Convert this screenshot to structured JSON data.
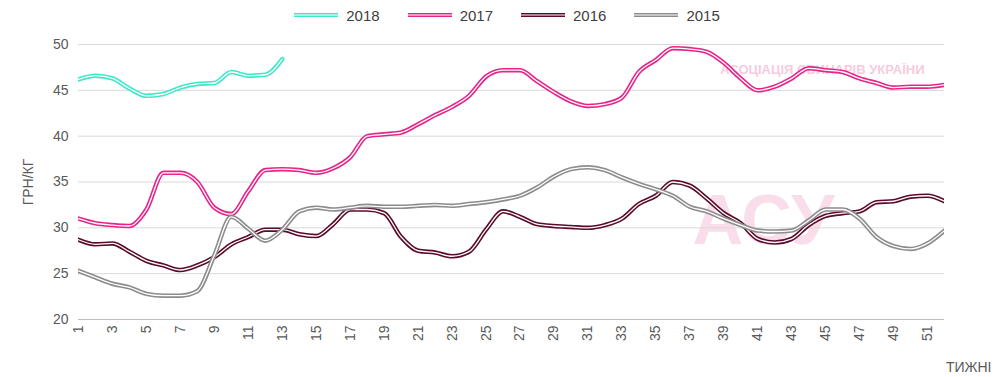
{
  "chart_data": {
    "type": "line",
    "x_label": "ТИЖНІ",
    "y_label": "ГРН/КГ",
    "annotations": [
      "АСОЦІАЦІЯ СВИНАРІВ УКРАЇНИ",
      "АСУ"
    ],
    "x": [
      1,
      2,
      3,
      4,
      5,
      6,
      7,
      8,
      9,
      10,
      11,
      12,
      13,
      14,
      15,
      16,
      17,
      18,
      19,
      20,
      21,
      22,
      23,
      24,
      25,
      26,
      27,
      28,
      29,
      30,
      31,
      32,
      33,
      34,
      35,
      36,
      37,
      38,
      39,
      40,
      41,
      42,
      43,
      44,
      45,
      46,
      47,
      48,
      49,
      50,
      51,
      52
    ],
    "xlim": [
      1,
      52
    ],
    "xticks": [
      1,
      3,
      5,
      7,
      9,
      11,
      13,
      15,
      17,
      19,
      21,
      23,
      25,
      27,
      29,
      31,
      33,
      35,
      37,
      39,
      41,
      43,
      45,
      47,
      49,
      51
    ],
    "ylim": [
      20,
      50
    ],
    "yticks": [
      20,
      25,
      30,
      35,
      40,
      45,
      50
    ],
    "grid": true,
    "legend": "top",
    "line_style": "double",
    "series": [
      {
        "name": "2018",
        "color": "#3ee8c8",
        "values": [
          46.2,
          46.6,
          46.3,
          45.2,
          44.4,
          44.6,
          45.3,
          45.7,
          45.8,
          47.0,
          46.6,
          46.7,
          48.4,
          null,
          null,
          null,
          null,
          null,
          null,
          null,
          null,
          null,
          null,
          null,
          null,
          null,
          null,
          null,
          null,
          null,
          null,
          null,
          null,
          null,
          null,
          null,
          null,
          null,
          null,
          null,
          null,
          null,
          null,
          null,
          null,
          null,
          null,
          null,
          null,
          null,
          null,
          null
        ]
      },
      {
        "name": "2017",
        "color": "#e6248a",
        "values": [
          31.0,
          30.5,
          30.3,
          30.2,
          32.0,
          36.0,
          36.0,
          35.0,
          32.2,
          31.5,
          34.0,
          36.3,
          36.4,
          36.3,
          36.0,
          36.5,
          37.7,
          40.0,
          40.2,
          40.4,
          41.3,
          42.3,
          43.2,
          44.4,
          46.5,
          47.2,
          47.2,
          46.0,
          44.8,
          43.8,
          43.3,
          43.5,
          44.2,
          47.0,
          48.3,
          49.6,
          49.5,
          49.2,
          48.0,
          46.3,
          45.0,
          45.4,
          46.3,
          47.4,
          47.2,
          47.0,
          46.3,
          45.8,
          45.3,
          45.4,
          45.4,
          45.6
        ]
      },
      {
        "name": "2016",
        "color": "#5a0a2a",
        "values": [
          28.7,
          28.2,
          28.3,
          27.4,
          26.4,
          25.9,
          25.4,
          25.9,
          26.8,
          28.2,
          29.0,
          29.8,
          29.8,
          29.3,
          29.1,
          30.4,
          32.0,
          32.0,
          31.6,
          29.0,
          27.5,
          27.3,
          26.9,
          27.4,
          29.8,
          31.8,
          31.2,
          30.4,
          30.2,
          30.1,
          30.0,
          30.3,
          31.0,
          32.6,
          33.5,
          35.0,
          34.6,
          33.2,
          31.6,
          30.5,
          28.8,
          28.4,
          28.8,
          30.3,
          31.3,
          31.6,
          31.8,
          32.8,
          32.9,
          33.4,
          33.5,
          32.9
        ]
      },
      {
        "name": "2015",
        "color": "#8c8c8c",
        "values": [
          25.3,
          24.6,
          23.9,
          23.5,
          22.8,
          22.6,
          22.6,
          23.1,
          27.0,
          31.2,
          29.9,
          28.6,
          29.8,
          31.8,
          32.2,
          32.0,
          32.2,
          32.4,
          32.3,
          32.3,
          32.4,
          32.5,
          32.4,
          32.6,
          32.8,
          33.1,
          33.5,
          34.4,
          35.6,
          36.4,
          36.6,
          36.3,
          35.5,
          34.8,
          34.2,
          33.5,
          32.3,
          31.8,
          31.0,
          30.3,
          29.7,
          29.6,
          29.7,
          30.8,
          32.0,
          32.0,
          31.0,
          29.0,
          28.0,
          27.7,
          28.3,
          29.7
        ]
      }
    ]
  }
}
